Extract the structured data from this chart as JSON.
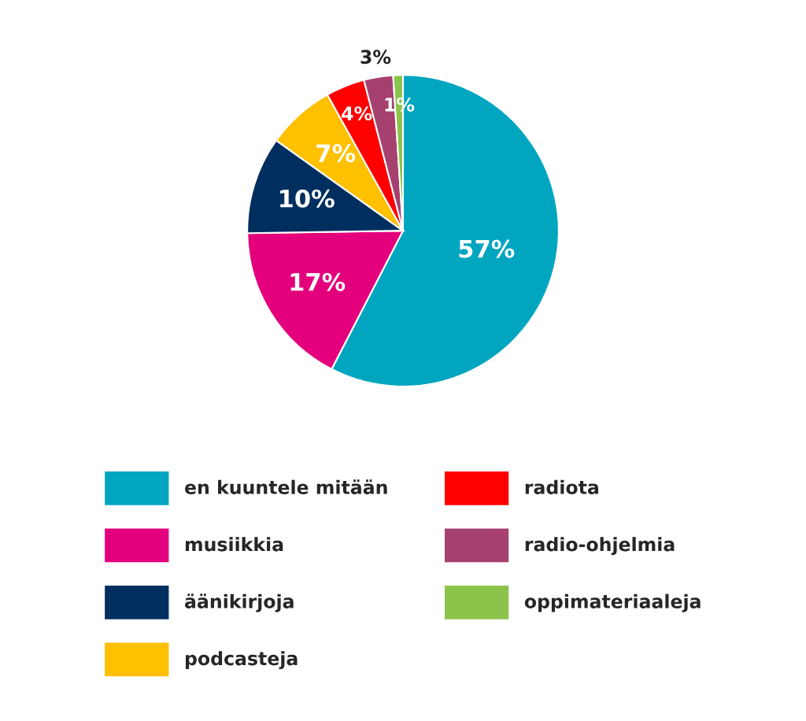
{
  "chart_data": {
    "type": "pie",
    "categories": [
      "en kuuntele mitään",
      "musiikkia",
      "äänikirjoja",
      "podcasteja",
      "radiota",
      "radio-ohjelmia",
      "oppimateriaaleja"
    ],
    "values": [
      57,
      17,
      10,
      7,
      4,
      3,
      1
    ],
    "colors": [
      "#00a5c0",
      "#e4007c",
      "#002f5f",
      "#ffc000",
      "#ff0000",
      "#a6406f",
      "#8cc34b"
    ],
    "value_labels": [
      "57%",
      "17%",
      "10%",
      "7%",
      "4%",
      "3%",
      "1%"
    ],
    "legend": "bottom"
  }
}
